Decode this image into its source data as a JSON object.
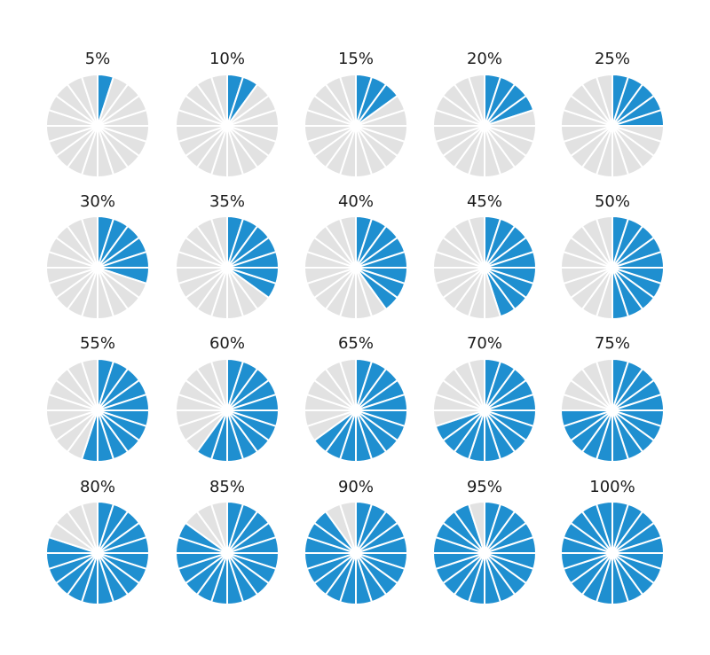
{
  "colors": {
    "filled": "#1f8fd0",
    "empty": "#e2e2e2",
    "separator": "#ffffff",
    "background": "#ffffff"
  },
  "chart_data": {
    "type": "pie",
    "segments_per_pie": 20,
    "rows": 4,
    "columns": 5,
    "categories": [
      "5%",
      "10%",
      "15%",
      "20%",
      "25%",
      "30%",
      "35%",
      "40%",
      "45%",
      "50%",
      "55%",
      "60%",
      "65%",
      "70%",
      "75%",
      "80%",
      "85%",
      "90%",
      "95%",
      "100%"
    ],
    "values": [
      5,
      10,
      15,
      20,
      25,
      30,
      35,
      40,
      45,
      50,
      55,
      60,
      65,
      70,
      75,
      80,
      85,
      90,
      95,
      100
    ],
    "title": "",
    "xlabel": "",
    "ylabel": ""
  }
}
